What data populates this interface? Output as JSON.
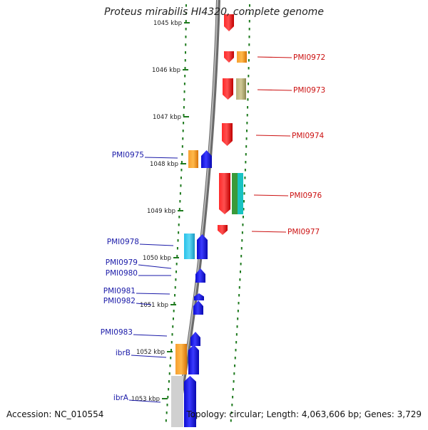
{
  "title": "Proteus mirabilis HI4320, complete genome",
  "accession": "Accession: NC_010554",
  "topology": "Topology: circular; Length: 4,063,606 bp; Genes: 3,729",
  "colors": {
    "forward_gene": "#1515e6",
    "reverse_gene": "#e01010",
    "forward_label": "#1a1aa8",
    "reverse_label": "#cc1111",
    "tick": "#1e7a1e",
    "orange": "#f08c14",
    "cyan": "#29c7e8",
    "olive": "#a8a86a",
    "green": "#3a9a3a",
    "teal": "#18c2c2"
  },
  "kbp_ticks": [
    "1045 kbp",
    "1046 kbp",
    "1047 kbp",
    "1048 kbp",
    "1049 kbp",
    "1050 kbp",
    "1051 kbp",
    "1052 kbp",
    "1053 kbp"
  ],
  "reverse_genes": [
    {
      "id": "PMI0972"
    },
    {
      "id": "PMI0973"
    },
    {
      "id": "PMI0974"
    },
    {
      "id": "PMI0976"
    },
    {
      "id": "PMI0977"
    }
  ],
  "forward_genes": [
    {
      "id": "PMI0975"
    },
    {
      "id": "PMI0978"
    },
    {
      "id": "PMI0979"
    },
    {
      "id": "PMI0980"
    },
    {
      "id": "PMI0981"
    },
    {
      "id": "PMI0982"
    },
    {
      "id": "PMI0983"
    },
    {
      "id": "ibrB"
    },
    {
      "id": "ibrA"
    }
  ]
}
